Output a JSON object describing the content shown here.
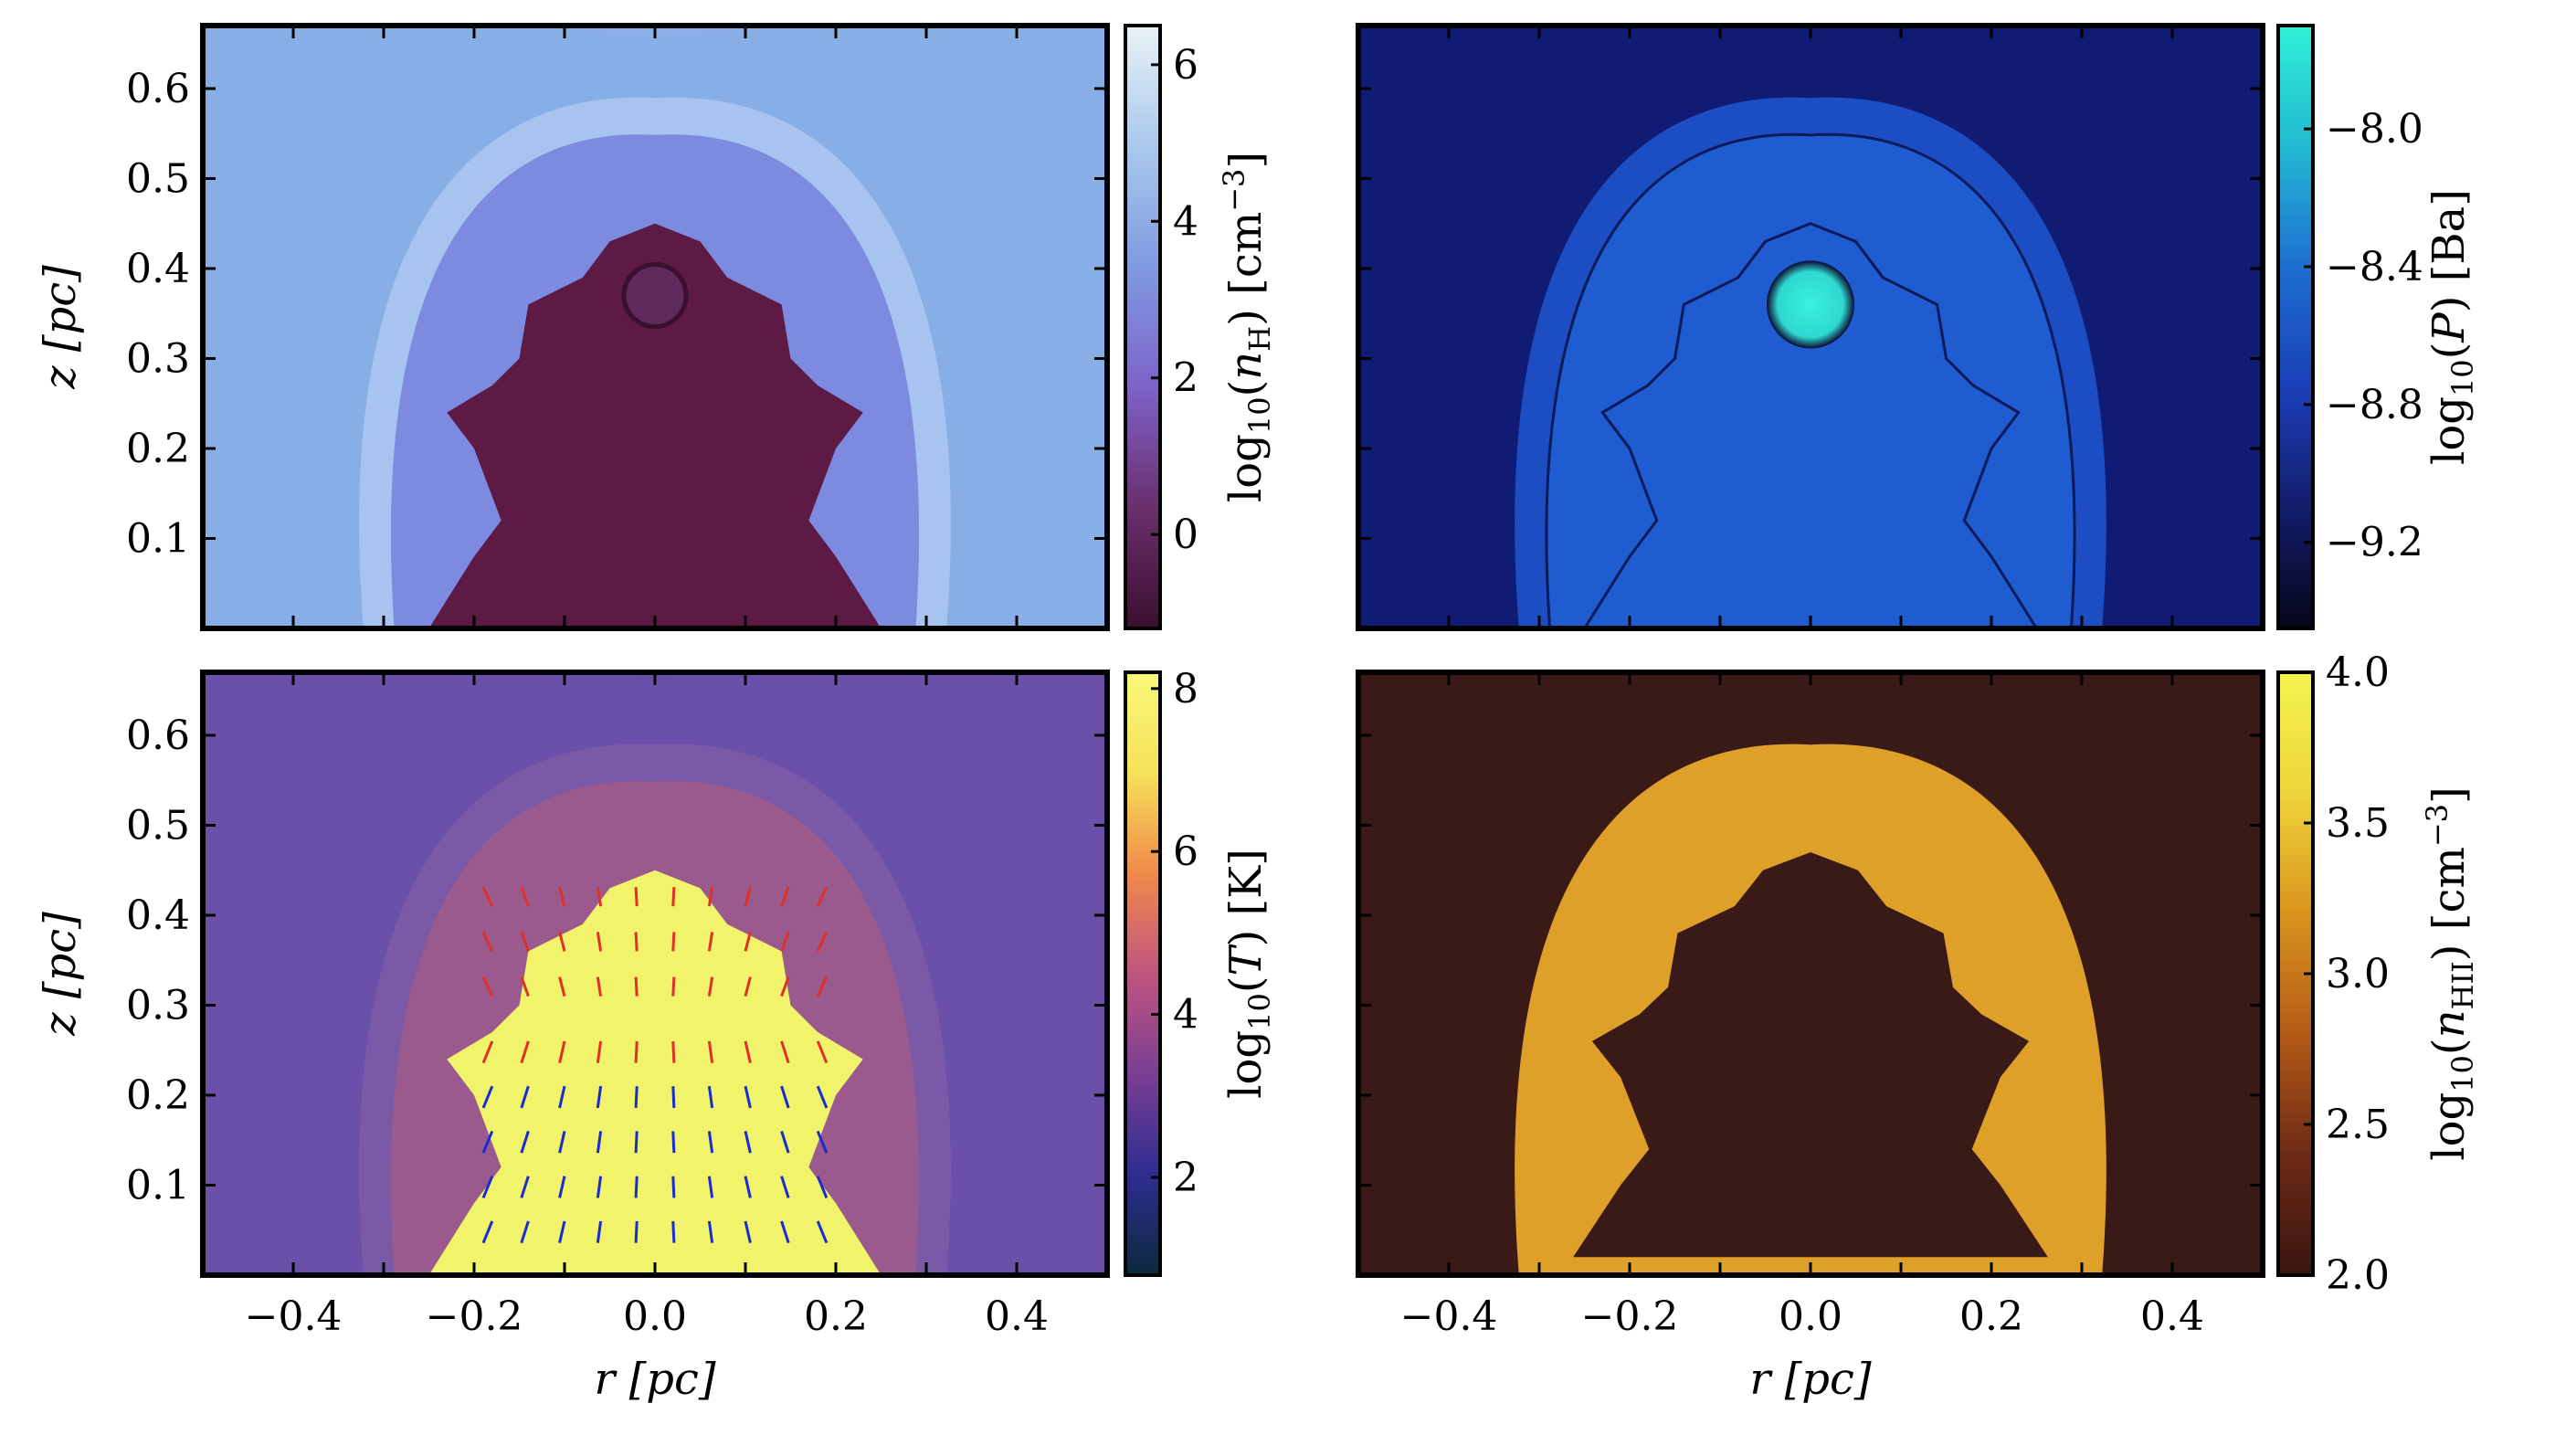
{
  "chart_data": [
    {
      "type": "heatmap",
      "panel": "top-left",
      "quantity": "density",
      "xlim": [
        -0.5,
        0.5
      ],
      "ylim": [
        0,
        0.67
      ],
      "x_ticks": [],
      "y_ticks": [
        "0.1",
        "0.2",
        "0.3",
        "0.4",
        "0.5",
        "0.6"
      ],
      "ylabel": "z [pc]",
      "xlabel": "",
      "colorbar": {
        "label": "log10(nH) [cm−3]",
        "label_main": "log",
        "label_sub": "10",
        "label_paren": "(n",
        "label_paren_sub": "H",
        "label_rest": ") [cm",
        "label_sup": "−3",
        "label_end": "]",
        "range": [
          -1.2,
          6.5
        ],
        "ticks": [
          "0",
          "2",
          "4",
          "6"
        ],
        "tick_values": [
          0,
          2,
          4,
          6
        ],
        "colors": [
          "#3b0f2e",
          "#6a2f6d",
          "#7d62c8",
          "#7f9be0",
          "#a9c8ec",
          "#e8f2f6"
        ]
      },
      "region_colors": {
        "background": "#88aee6",
        "shell": "#a6c4ef",
        "interior": "#7c8ae0",
        "bubble": "#5c1a45"
      }
    },
    {
      "type": "heatmap",
      "panel": "top-right",
      "quantity": "pressure",
      "xlim": [
        -0.5,
        0.5
      ],
      "ylim": [
        0,
        0.67
      ],
      "x_ticks": [],
      "y_ticks": [],
      "colorbar": {
        "label": "log10(P) [Ba]",
        "label_main": "log",
        "label_sub": "10",
        "label_rest": "(P) [Ba]",
        "range": [
          -9.45,
          -7.7
        ],
        "ticks": [
          "−9.2",
          "−8.8",
          "−8.4",
          "−8.0"
        ],
        "tick_values": [
          -9.2,
          -8.8,
          -8.4,
          -8.0
        ],
        "colors": [
          "#050518",
          "#121d6b",
          "#1a3fb8",
          "#1d6fd0",
          "#22b9d2",
          "#2ff0d6"
        ]
      },
      "region_colors": {
        "background": "#101c74",
        "shell": "#1c4dc2",
        "interior": "#1f5cd0",
        "bubble": "#2fe0d0"
      }
    },
    {
      "type": "heatmap",
      "panel": "bottom-left",
      "quantity": "temperature",
      "xlim": [
        -0.5,
        0.5
      ],
      "ylim": [
        0,
        0.67
      ],
      "x_ticks": [
        "−0.4",
        "−0.2",
        "0.0",
        "0.2",
        "0.4"
      ],
      "y_ticks": [
        "0.1",
        "0.2",
        "0.3",
        "0.4",
        "0.5",
        "0.6"
      ],
      "xlabel": "r [pc]",
      "ylabel": "z [pc]",
      "colorbar": {
        "label": "log10(T) [K]",
        "label_main": "log",
        "label_sub": "10",
        "label_rest": "(T) [K]",
        "range": [
          0.8,
          8.2
        ],
        "ticks": [
          "2",
          "4",
          "6",
          "8"
        ],
        "tick_values": [
          2,
          4,
          6,
          8
        ],
        "colors": [
          "#0b2a3c",
          "#2d2d8f",
          "#7a3f93",
          "#c0547f",
          "#f08a4a",
          "#f6e15a",
          "#f8f87a"
        ]
      },
      "region_colors": {
        "background": "#6a50a8",
        "shell": "#7a5aa6",
        "interior": "#9a5a8e",
        "bubble": "#f1f46a"
      },
      "arrow_colors": [
        "#1a2ccf",
        "#e0302a"
      ]
    },
    {
      "type": "heatmap",
      "panel": "bottom-right",
      "quantity": "ionized density",
      "xlim": [
        -0.5,
        0.5
      ],
      "ylim": [
        0,
        0.67
      ],
      "x_ticks": [
        "−0.4",
        "−0.2",
        "0.0",
        "0.2",
        "0.4"
      ],
      "y_ticks": [],
      "xlabel": "r [pc]",
      "colorbar": {
        "label": "log10(nHII) [cm−3]",
        "label_main": "log",
        "label_sub": "10",
        "label_paren": "(n",
        "label_paren_sub": "HII",
        "label_rest": ") [cm",
        "label_sup": "−3",
        "label_end": "]",
        "range": [
          2.0,
          4.0
        ],
        "ticks": [
          "2.0",
          "2.5",
          "3.0",
          "3.5",
          "4.0"
        ],
        "tick_values": [
          2.0,
          2.5,
          3.0,
          3.5,
          4.0
        ],
        "colors": [
          "#3a1410",
          "#6e2a15",
          "#b45a17",
          "#d9941d",
          "#eed43a",
          "#f4f54f"
        ]
      },
      "region_colors": {
        "background": "#3a1a16",
        "shell": "#dfa02a",
        "interior": "#3a1a16"
      }
    }
  ]
}
